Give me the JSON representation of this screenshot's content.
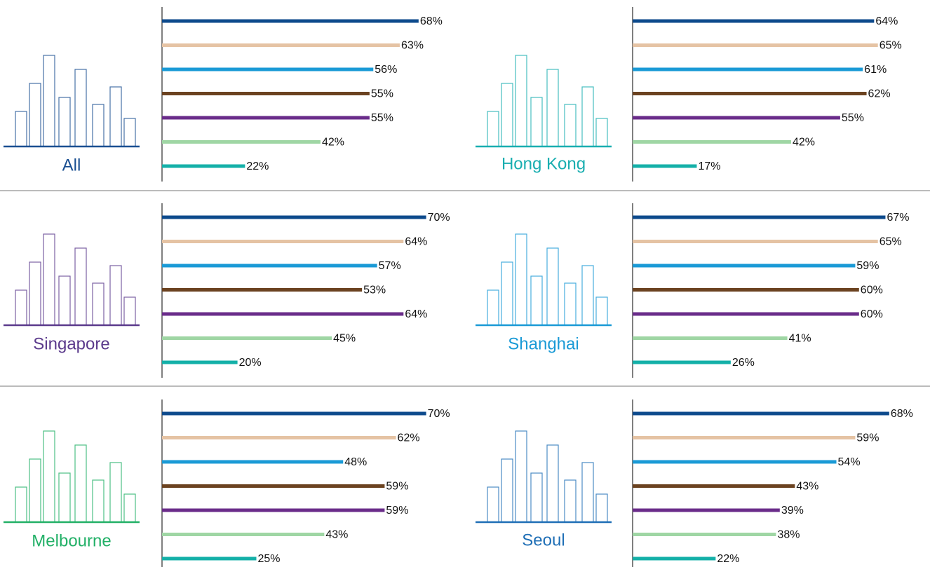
{
  "chart_data": [
    {
      "type": "bar",
      "title": "All",
      "title_color": "#1a4f91",
      "xlim": [
        0,
        100
      ],
      "values": [
        68,
        63,
        56,
        55,
        55,
        42,
        22
      ],
      "value_labels": [
        "68%",
        "63%",
        "56%",
        "55%",
        "55%",
        "42%",
        "22%"
      ],
      "colors": [
        "#0d4a8c",
        "#e5c3a4",
        "#1a9ad6",
        "#6b4220",
        "#6a2c8a",
        "#9fd6a4",
        "#14b0a8"
      ]
    },
    {
      "type": "bar",
      "title": "Hong Kong",
      "title_color": "#19aeb0",
      "xlim": [
        0,
        100
      ],
      "values": [
        64,
        65,
        61,
        62,
        55,
        42,
        17
      ],
      "value_labels": [
        "64%",
        "65%",
        "61%",
        "62%",
        "55%",
        "42%",
        "17%"
      ],
      "colors": [
        "#0d4a8c",
        "#e5c3a4",
        "#1a9ad6",
        "#6b4220",
        "#6a2c8a",
        "#9fd6a4",
        "#14b0a8"
      ]
    },
    {
      "type": "bar",
      "title": "Singapore",
      "title_color": "#5b3a8c",
      "xlim": [
        0,
        100
      ],
      "values": [
        70,
        64,
        57,
        53,
        64,
        45,
        20
      ],
      "value_labels": [
        "70%",
        "64%",
        "57%",
        "53%",
        "64%",
        "45%",
        "20%"
      ],
      "colors": [
        "#0d4a8c",
        "#e5c3a4",
        "#1a9ad6",
        "#6b4220",
        "#6a2c8a",
        "#9fd6a4",
        "#14b0a8"
      ]
    },
    {
      "type": "bar",
      "title": "Shanghai",
      "title_color": "#1a9ad6",
      "xlim": [
        0,
        100
      ],
      "values": [
        67,
        65,
        59,
        60,
        60,
        41,
        26
      ],
      "value_labels": [
        "67%",
        "65%",
        "59%",
        "60%",
        "60%",
        "41%",
        "26%"
      ],
      "colors": [
        "#0d4a8c",
        "#e5c3a4",
        "#1a9ad6",
        "#6b4220",
        "#6a2c8a",
        "#9fd6a4",
        "#14b0a8"
      ]
    },
    {
      "type": "bar",
      "title": "Melbourne",
      "title_color": "#22b067",
      "xlim": [
        0,
        100
      ],
      "values": [
        70,
        62,
        48,
        59,
        59,
        43,
        25
      ],
      "value_labels": [
        "70%",
        "62%",
        "48%",
        "59%",
        "59%",
        "43%",
        "25%"
      ],
      "colors": [
        "#0d4a8c",
        "#e5c3a4",
        "#1a9ad6",
        "#6b4220",
        "#6a2c8a",
        "#9fd6a4",
        "#14b0a8"
      ]
    },
    {
      "type": "bar",
      "title": "Seoul",
      "title_color": "#1f6fb6",
      "xlim": [
        0,
        100
      ],
      "values": [
        68,
        59,
        54,
        43,
        39,
        38,
        22
      ],
      "value_labels": [
        "68%",
        "59%",
        "54%",
        "43%",
        "39%",
        "38%",
        "22%"
      ],
      "colors": [
        "#0d4a8c",
        "#e5c3a4",
        "#1a9ad6",
        "#6b4220",
        "#6a2c8a",
        "#9fd6a4",
        "#14b0a8"
      ]
    }
  ]
}
